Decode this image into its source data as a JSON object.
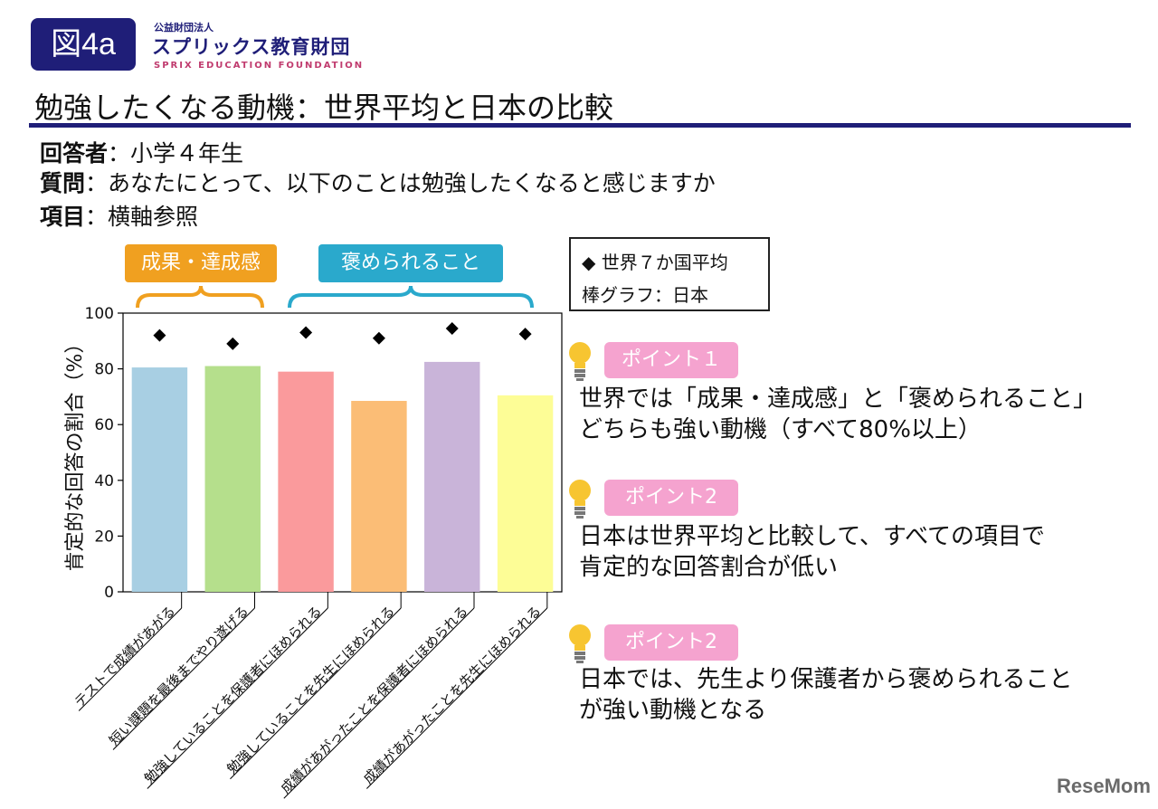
{
  "header": {
    "figure_badge": "図4a",
    "org_small": "公益財団法人",
    "org_name": "スプリックス教育財団",
    "org_english": "SPRIX EDUCATION FOUNDATION",
    "title": "勉強したくなる動機：世界平均と日本の比較"
  },
  "info": {
    "respondents_label": "回答者",
    "respondents_value": "：小学４年生",
    "question_label": "質問",
    "question_value": "：あなたにとって、以下のことは勉強したくなると感じますか",
    "items_label": "項目",
    "items_value": "：横軸参照"
  },
  "groups": {
    "achievement": "成果・達成感",
    "praise": "褒められること",
    "achievement_color": "#f0a020",
    "praise_color": "#2aa9cc"
  },
  "legend": {
    "world": "◆ 世界７か国平均",
    "japan": "棒グラフ：日本"
  },
  "chart_data": {
    "type": "bar",
    "ylabel": "肯定的な回答の割合（%）",
    "ylim": [
      0,
      100
    ],
    "yticks": [
      "0",
      "20",
      "40",
      "60",
      "80",
      "100"
    ],
    "categories": [
      "テストで成績があがる",
      "短い課題を最後までやり遂げる",
      "勉強していることを保護者にほめられる",
      "勉強していることを先生にほめられる",
      "成績があがったことを保護者にほめられる",
      "成績があがったことを先生にほめられる"
    ],
    "series": [
      {
        "values": [
          80.5,
          81,
          79,
          68.5,
          82.5,
          70.5
        ]
      },
      {
        "values": [
          92,
          89,
          93,
          91,
          94.5,
          92.5
        ]
      }
    ],
    "bar_colors": [
      "#a8cfe3",
      "#b5df8c",
      "#fa9a9c",
      "#fbbd76",
      "#c9b4d9",
      "#fdfd96"
    ],
    "marker_color": "#000000"
  },
  "points": [
    {
      "badge": "ポイント１",
      "lines": [
        "世界では「成果・達成感」と「褒められること」",
        "どちらも強い動機（すべて80%以上）"
      ]
    },
    {
      "badge": "ポイント2",
      "lines": [
        "日本は世界平均と比較して、すべての項目で",
        "肯定的な回答割合が低い"
      ]
    },
    {
      "badge": "ポイント2",
      "lines": [
        "日本では、先生より保護者から褒められること",
        "が強い動機となる"
      ]
    }
  ],
  "watermark": "ReseMom"
}
